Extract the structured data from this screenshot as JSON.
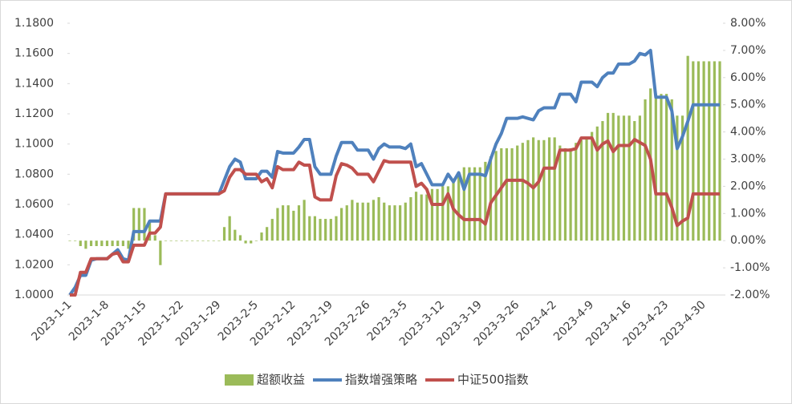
{
  "chart_data": {
    "type": "combo",
    "categories": [
      "2023-1-1",
      null,
      null,
      null,
      null,
      null,
      null,
      "2023-1-8",
      null,
      null,
      null,
      null,
      null,
      null,
      "2023-1-15",
      null,
      null,
      null,
      null,
      null,
      null,
      "2023-1-22",
      null,
      null,
      null,
      null,
      null,
      null,
      "2023-1-29",
      null,
      null,
      null,
      null,
      null,
      null,
      "2023-2-5",
      null,
      null,
      null,
      null,
      null,
      null,
      "2023-2-12",
      null,
      null,
      null,
      null,
      null,
      null,
      "2023-2-19",
      null,
      null,
      null,
      null,
      null,
      null,
      "2023-2-26",
      null,
      null,
      null,
      null,
      null,
      null,
      "2023-3-5",
      null,
      null,
      null,
      null,
      null,
      null,
      "2023-3-12",
      null,
      null,
      null,
      null,
      null,
      null,
      "2023-3-19",
      null,
      null,
      null,
      null,
      null,
      null,
      "2023-3-26",
      null,
      null,
      null,
      null,
      null,
      null,
      "2023-4-2",
      null,
      null,
      null,
      null,
      null,
      null,
      "2023-4-9",
      null,
      null,
      null,
      null,
      null,
      null,
      "2023-4-16",
      null,
      null,
      null,
      null,
      null,
      null,
      "2023-4-23",
      null,
      null,
      null,
      null,
      null,
      null,
      "2023-4-30",
      null,
      null,
      null
    ],
    "series": [
      {
        "name": "超额收益",
        "type": "bar",
        "axis": "y2",
        "color": "#9bbb59",
        "values": [
          0,
          0,
          -0.2,
          -0.3,
          -0.2,
          -0.2,
          -0.2,
          -0.2,
          -0.2,
          -0.2,
          -0.2,
          -0.3,
          1.2,
          1.2,
          1.2,
          0.7,
          0.2,
          -0.9,
          0,
          0,
          0,
          0,
          0,
          0,
          0,
          0,
          0,
          0,
          0,
          0.5,
          0.9,
          0.4,
          0.2,
          -0.1,
          -0.1,
          0,
          0.3,
          0.5,
          0.8,
          1.2,
          1.3,
          1.3,
          1.1,
          1.3,
          1.5,
          0.9,
          0.9,
          0.8,
          0.8,
          0.8,
          0.9,
          1.2,
          1.3,
          1.5,
          1.4,
          1.4,
          1.4,
          1.5,
          1.6,
          1.4,
          1.3,
          1.3,
          1.3,
          1.4,
          1.6,
          1.8,
          1.7,
          1.7,
          1.9,
          1.9,
          2.0,
          2.0,
          2.2,
          2.4,
          2.7,
          2.7,
          2.7,
          2.7,
          2.9,
          3.1,
          3.3,
          3.4,
          3.4,
          3.4,
          3.5,
          3.6,
          3.7,
          3.8,
          3.7,
          3.7,
          3.8,
          3.8,
          3.5,
          3.4,
          3.4,
          3.6,
          3.7,
          3.8,
          4.0,
          4.2,
          4.4,
          4.7,
          4.7,
          4.6,
          4.6,
          4.6,
          4.4,
          4.6,
          5.2,
          5.6,
          5.4,
          5.4,
          5.4,
          5.2,
          4.6,
          4.6,
          6.8,
          6.6,
          6.6,
          6.6,
          6.6,
          6.6,
          6.6
        ]
      },
      {
        "name": "指数增强策略",
        "type": "line",
        "color": "#4f81bd",
        "values": [
          1.0,
          1.005,
          1.013,
          1.013,
          1.023,
          1.024,
          1.024,
          1.024,
          1.027,
          1.03,
          1.024,
          1.023,
          1.042,
          1.042,
          1.042,
          1.049,
          1.049,
          1.049,
          1.067,
          1.067,
          1.067,
          1.067,
          1.067,
          1.067,
          1.067,
          1.067,
          1.067,
          1.067,
          1.067,
          1.076,
          1.085,
          1.09,
          1.088,
          1.077,
          1.077,
          1.077,
          1.082,
          1.082,
          1.078,
          1.095,
          1.094,
          1.094,
          1.094,
          1.098,
          1.103,
          1.103,
          1.085,
          1.08,
          1.08,
          1.08,
          1.092,
          1.101,
          1.101,
          1.101,
          1.096,
          1.096,
          1.096,
          1.09,
          1.097,
          1.1,
          1.098,
          1.098,
          1.098,
          1.097,
          1.1,
          1.085,
          1.087,
          1.08,
          1.073,
          1.073,
          1.073,
          1.08,
          1.075,
          1.081,
          1.07,
          1.08,
          1.08,
          1.08,
          1.079,
          1.09,
          1.1,
          1.107,
          1.117,
          1.117,
          1.117,
          1.118,
          1.117,
          1.116,
          1.122,
          1.124,
          1.124,
          1.124,
          1.133,
          1.133,
          1.133,
          1.128,
          1.141,
          1.141,
          1.141,
          1.138,
          1.144,
          1.147,
          1.147,
          1.153,
          1.153,
          1.153,
          1.155,
          1.16,
          1.159,
          1.162,
          1.131,
          1.131,
          1.131,
          1.122,
          1.097,
          1.105,
          1.115,
          1.126,
          1.126,
          1.126,
          1.126,
          1.126,
          1.126
        ]
      },
      {
        "name": "中证500指数",
        "type": "line",
        "color": "#c0504d",
        "values": [
          1.0,
          1.0,
          1.015,
          1.015,
          1.024,
          1.024,
          1.024,
          1.024,
          1.027,
          1.028,
          1.022,
          1.022,
          1.033,
          1.033,
          1.033,
          1.041,
          1.041,
          1.045,
          1.067,
          1.067,
          1.067,
          1.067,
          1.067,
          1.067,
          1.067,
          1.067,
          1.067,
          1.067,
          1.067,
          1.069,
          1.078,
          1.083,
          1.083,
          1.08,
          1.08,
          1.08,
          1.075,
          1.077,
          1.071,
          1.085,
          1.083,
          1.083,
          1.083,
          1.088,
          1.086,
          1.086,
          1.065,
          1.063,
          1.063,
          1.063,
          1.079,
          1.087,
          1.086,
          1.084,
          1.08,
          1.08,
          1.08,
          1.075,
          1.082,
          1.089,
          1.088,
          1.088,
          1.088,
          1.088,
          1.088,
          1.072,
          1.074,
          1.07,
          1.06,
          1.06,
          1.06,
          1.067,
          1.057,
          1.053,
          1.05,
          1.05,
          1.05,
          1.05,
          1.047,
          1.061,
          1.066,
          1.071,
          1.076,
          1.076,
          1.076,
          1.076,
          1.074,
          1.071,
          1.075,
          1.084,
          1.084,
          1.084,
          1.096,
          1.096,
          1.096,
          1.097,
          1.104,
          1.104,
          1.104,
          1.096,
          1.1,
          1.102,
          1.095,
          1.099,
          1.099,
          1.099,
          1.103,
          1.101,
          1.099,
          1.09,
          1.067,
          1.067,
          1.067,
          1.058,
          1.046,
          1.049,
          1.051,
          1.067,
          1.067,
          1.067,
          1.067,
          1.067,
          1.067
        ]
      }
    ],
    "ylim": [
      1.0,
      1.18
    ],
    "yticks": [
      {
        "value": 1.0,
        "label": "1.0000"
      },
      {
        "value": 1.02,
        "label": "1.0200"
      },
      {
        "value": 1.04,
        "label": "1.0400"
      },
      {
        "value": 1.06,
        "label": "1.0600"
      },
      {
        "value": 1.08,
        "label": "1.0800"
      },
      {
        "value": 1.1,
        "label": "1.1000"
      },
      {
        "value": 1.12,
        "label": "1.1200"
      },
      {
        "value": 1.14,
        "label": "1.1400"
      },
      {
        "value": 1.16,
        "label": "1.1600"
      },
      {
        "value": 1.18,
        "label": "1.1800"
      }
    ],
    "y2lim": [
      -2,
      8
    ],
    "y2ticks": [
      {
        "value": -2,
        "label": "-2.00%"
      },
      {
        "value": -1,
        "label": "-1.00%"
      },
      {
        "value": 0,
        "label": "0.00%"
      },
      {
        "value": 1,
        "label": "1.00%"
      },
      {
        "value": 2,
        "label": "2.00%"
      },
      {
        "value": 3,
        "label": "3.00%"
      },
      {
        "value": 4,
        "label": "4.00%"
      },
      {
        "value": 5,
        "label": "5.00%"
      },
      {
        "value": 6,
        "label": "6.00%"
      },
      {
        "value": 7,
        "label": "7.00%"
      },
      {
        "value": 8,
        "label": "8.00%"
      }
    ],
    "legend": "bottom"
  }
}
